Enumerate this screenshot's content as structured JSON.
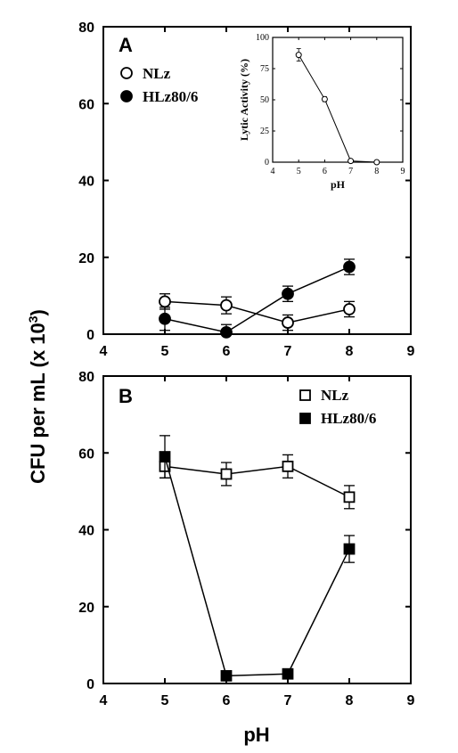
{
  "figure": {
    "ylabel_main": "CFU per mL (x 10",
    "ylabel_exp": "3",
    "ylabel_close": ")",
    "xlabel": "pH"
  },
  "chart_data": [
    {
      "type": "line",
      "panel": "A",
      "x": [
        5,
        6,
        7,
        8
      ],
      "xlim": [
        4,
        9
      ],
      "ylim": [
        0,
        80
      ],
      "xticks": [
        4,
        5,
        6,
        7,
        8,
        9
      ],
      "yticks": [
        0,
        20,
        40,
        60,
        80
      ],
      "xtick_labels": [
        "4",
        "5",
        "6",
        "7",
        "8",
        "9"
      ],
      "ytick_labels": [
        "0",
        "20",
        "40",
        "60",
        "80"
      ],
      "legend_placement": "top-left",
      "series": [
        {
          "name": "NLz",
          "marker": "open-circle",
          "values": [
            8.5,
            7.5,
            3,
            6.5
          ],
          "errors": [
            2,
            2.2,
            2,
            2
          ]
        },
        {
          "name": "HLz80/6",
          "marker": "filled-circle",
          "values": [
            4,
            0.5,
            10.5,
            17.5
          ],
          "errors": [
            3,
            2,
            2,
            2
          ]
        }
      ]
    },
    {
      "type": "line",
      "panel": "A-inset",
      "xlabel": "pH",
      "ylabel": "Lytic Activity (%)",
      "x": [
        5,
        6,
        7,
        8
      ],
      "xlim": [
        4,
        9
      ],
      "ylim": [
        0,
        100
      ],
      "xticks": [
        4,
        5,
        6,
        7,
        8,
        9
      ],
      "yticks": [
        0,
        25,
        50,
        75,
        100
      ],
      "xtick_labels": [
        "4",
        "5",
        "6",
        "7",
        "8",
        "9"
      ],
      "ytick_labels": [
        "0",
        "25",
        "50",
        "75",
        "100"
      ],
      "series": [
        {
          "marker": "open-circle",
          "values": [
            86,
            50.5,
            1,
            0
          ],
          "errors": [
            5,
            2,
            0.5,
            0.5
          ]
        }
      ]
    },
    {
      "type": "line",
      "panel": "B",
      "x": [
        5,
        6,
        7,
        8
      ],
      "xlim": [
        4,
        9
      ],
      "ylim": [
        0,
        80
      ],
      "xticks": [
        4,
        5,
        6,
        7,
        8,
        9
      ],
      "yticks": [
        0,
        20,
        40,
        60,
        80
      ],
      "xtick_labels": [
        "4",
        "5",
        "6",
        "7",
        "8",
        "9"
      ],
      "ytick_labels": [
        "0",
        "20",
        "40",
        "60",
        "80"
      ],
      "legend_placement": "top-right",
      "series": [
        {
          "name": "NLz",
          "marker": "open-square",
          "values": [
            56.5,
            54.5,
            56.5,
            48.5
          ],
          "errors": [
            3,
            3,
            3,
            3
          ]
        },
        {
          "name": "HLz80/6",
          "marker": "filled-square",
          "values": [
            59,
            2,
            2.5,
            35
          ],
          "errors": [
            5.5,
            0.5,
            0.5,
            3.5
          ]
        }
      ]
    }
  ]
}
